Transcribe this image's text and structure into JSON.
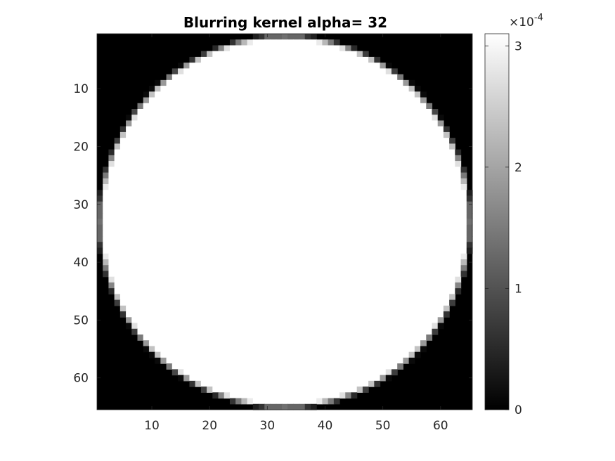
{
  "chart_data": {
    "type": "heatmap",
    "title": "Blurring kernel alpha= 32",
    "xlabel": "",
    "ylabel": "",
    "grid_size": [
      65,
      65
    ],
    "alpha": 32,
    "kernel_center": [
      33,
      33
    ],
    "kernel_radius": 32,
    "colormap": "gray",
    "value_range": [
      0,
      0.00031
    ],
    "x_ticks": [
      10,
      20,
      30,
      40,
      50,
      60
    ],
    "y_ticks": [
      10,
      20,
      30,
      40,
      50,
      60
    ],
    "x_tick_labels": [
      "10",
      "20",
      "30",
      "40",
      "50",
      "60"
    ],
    "y_tick_labels": [
      "10",
      "20",
      "30",
      "40",
      "50",
      "60"
    ],
    "xlim": [
      0.5,
      65.5
    ],
    "ylim": [
      0.5,
      65.5
    ],
    "y_direction": "reverse",
    "colorbar": {
      "ticks": [
        0,
        1,
        2,
        3
      ],
      "tick_labels": [
        "0",
        "1",
        "2",
        "3"
      ],
      "exponent_label": "×10",
      "exponent_power": "-4",
      "placement": "right"
    }
  }
}
